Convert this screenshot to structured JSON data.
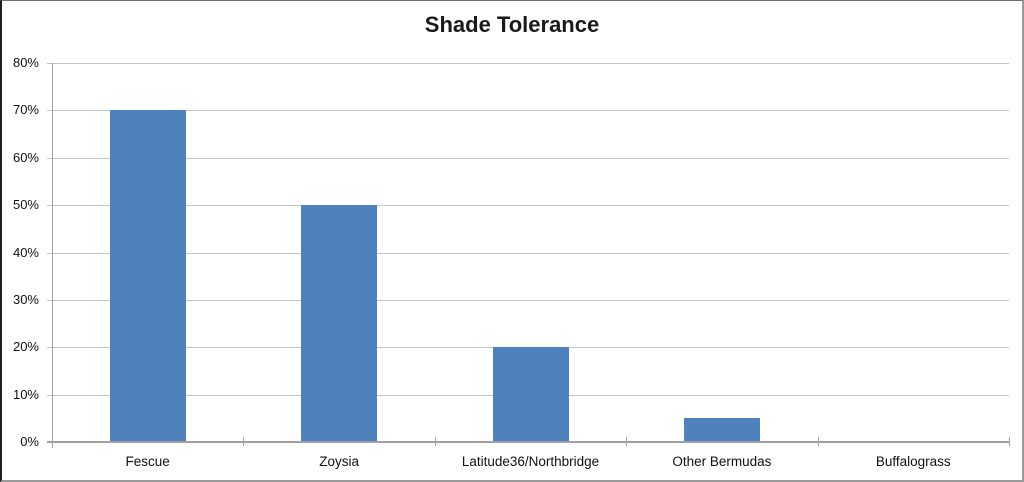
{
  "title": "Shade Tolerance",
  "chart_data": {
    "type": "bar",
    "title": "Shade Tolerance",
    "categories": [
      "Fescue",
      "Zoysia",
      "Latitude36/Northbridge",
      "Other Bermudas",
      "Buffalograss"
    ],
    "values": [
      70,
      50,
      20,
      5,
      0
    ],
    "xlabel": "",
    "ylabel": "",
    "ylim": [
      0,
      80
    ],
    "ytick_step": 10,
    "ytick_labels": [
      "0%",
      "10%",
      "20%",
      "30%",
      "40%",
      "50%",
      "60%",
      "70%",
      "80%"
    ],
    "grid": true,
    "legend_position": "none",
    "bar_color": "#4F81BD",
    "gridline_color": "#C4C4C4",
    "axis_color": "#A0A0A0",
    "text_color": "#111111",
    "background_color": "#FFFFFF"
  }
}
